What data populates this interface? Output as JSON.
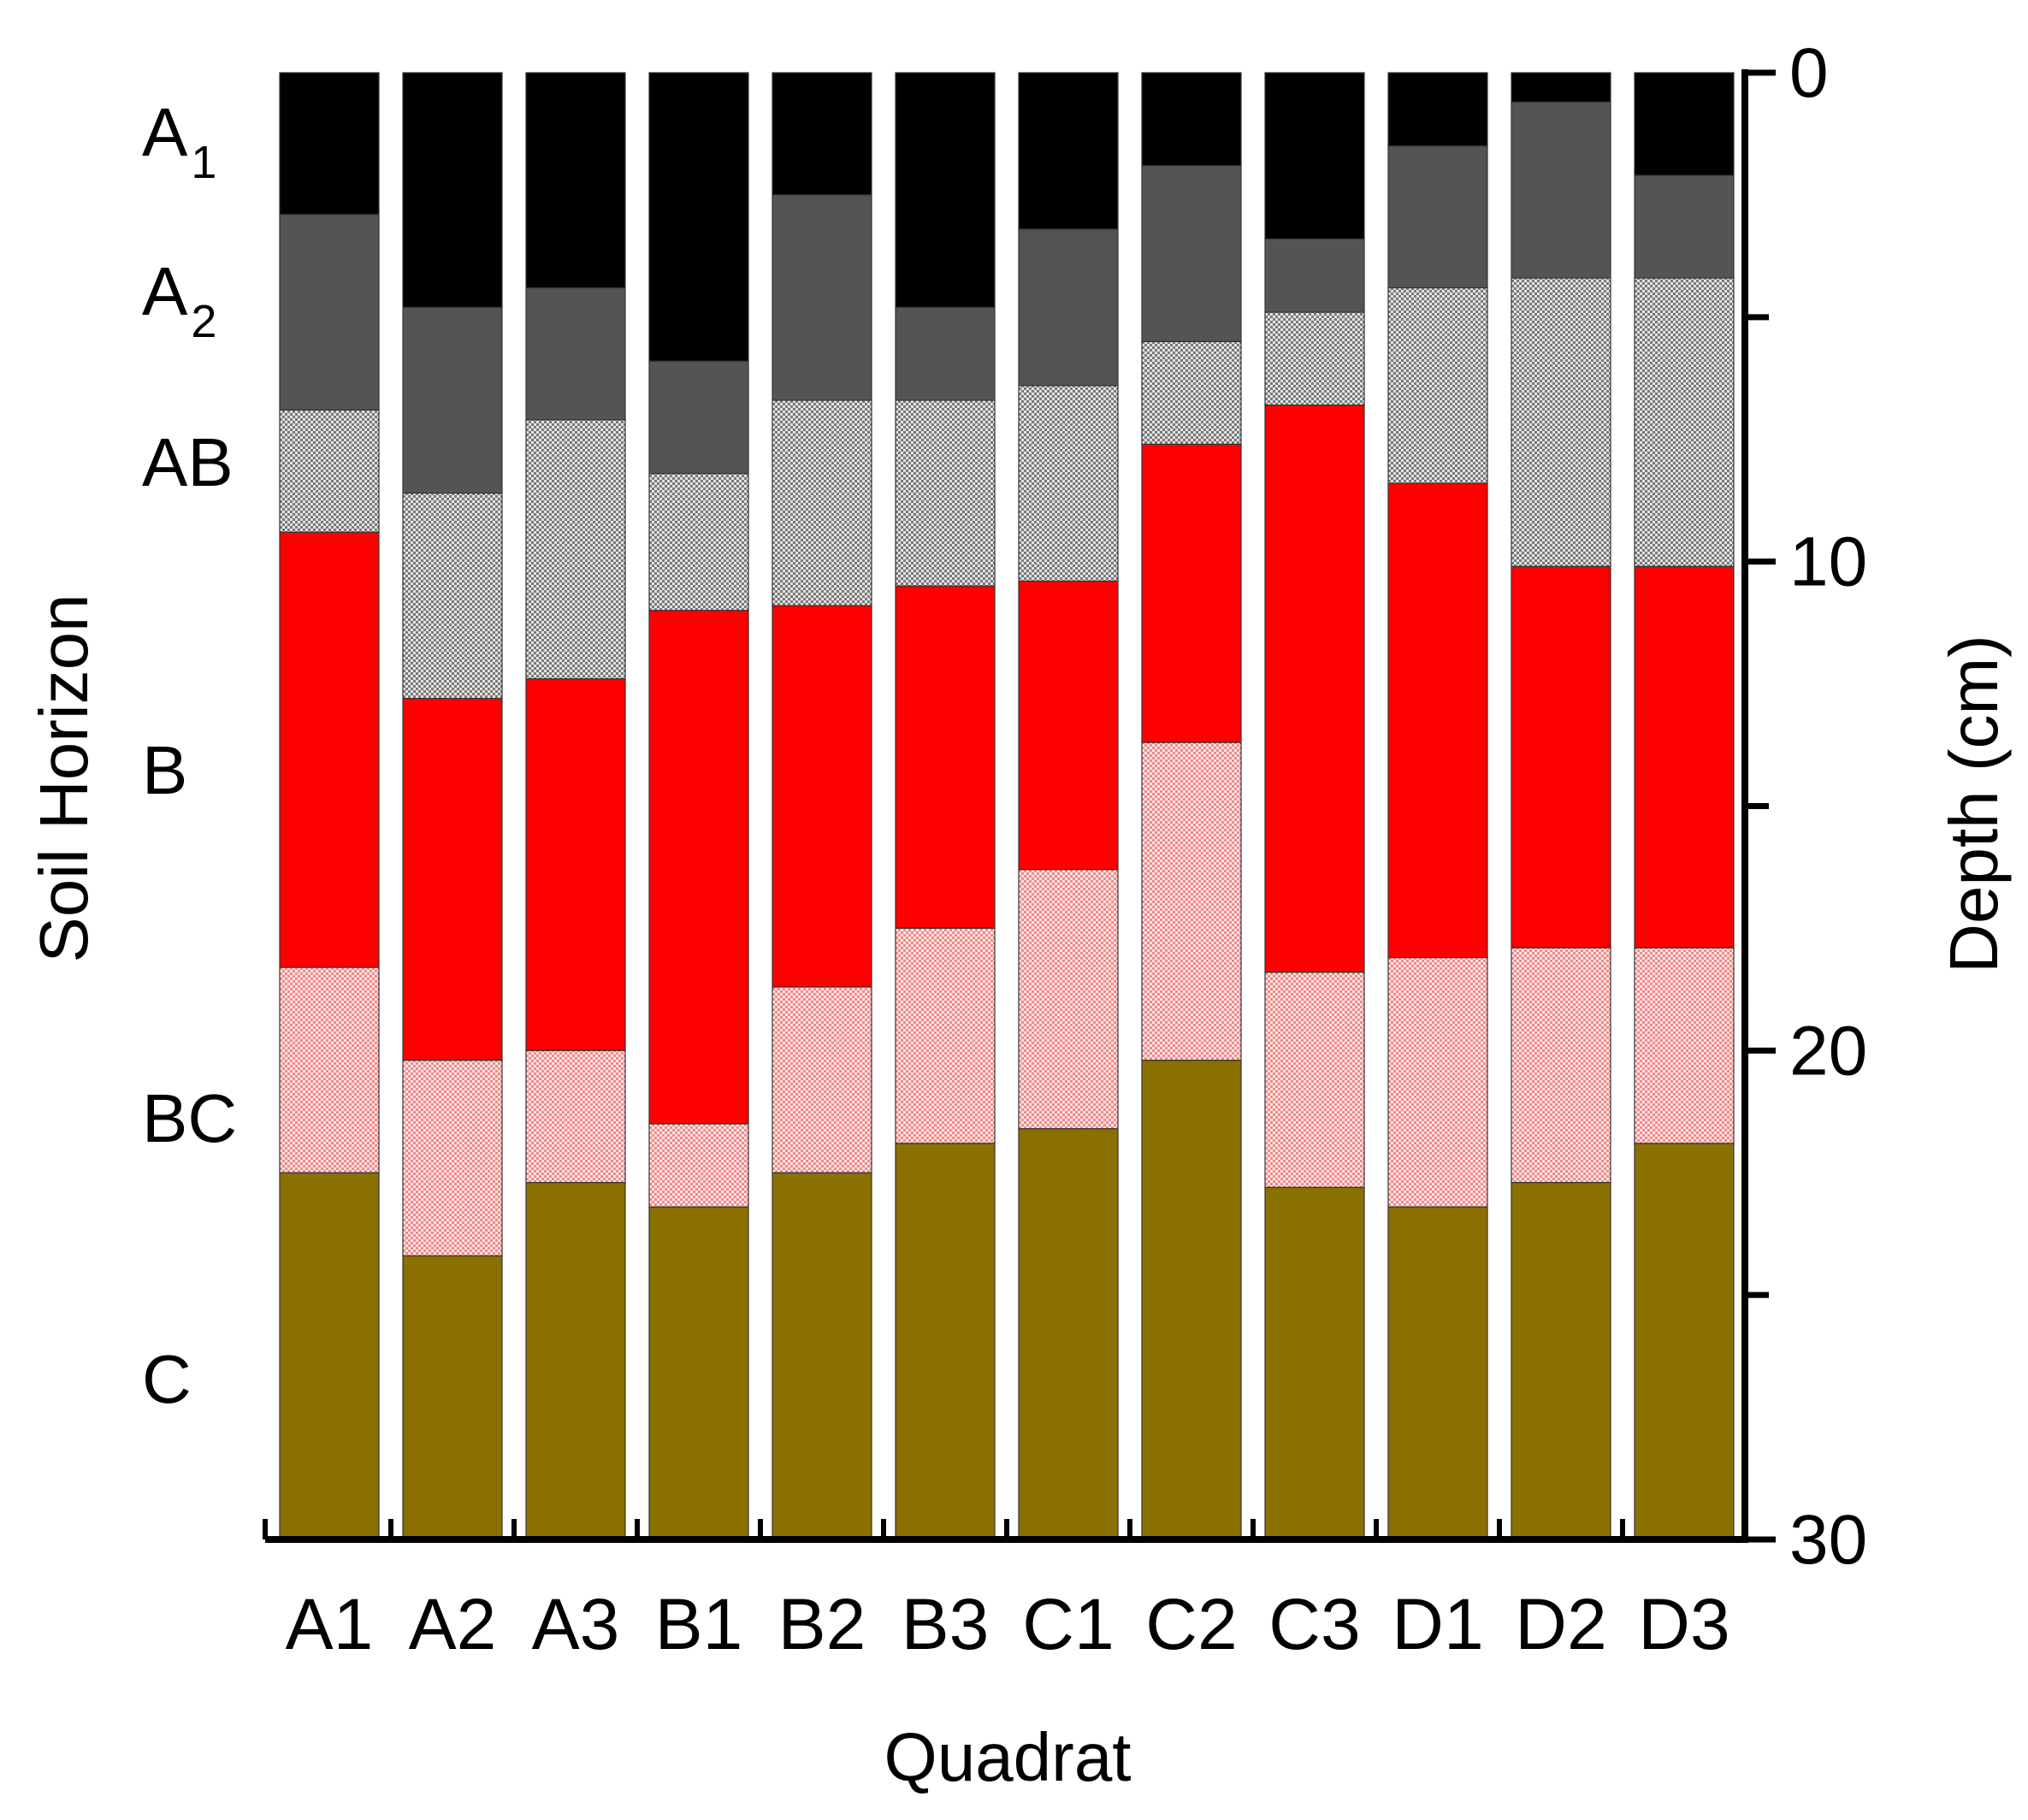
{
  "chart_data": {
    "type": "bar",
    "stacked": true,
    "orientation": "vertical",
    "xlabel": "Quadrat",
    "ylabel_left": "Soil Horizon",
    "ylabel_right": "Depth (cm)",
    "ylim": [
      0,
      30
    ],
    "y_inverted": true,
    "y_ticks": [
      0,
      5,
      10,
      15,
      20,
      25,
      30
    ],
    "y_tick_labels": [
      "0",
      "10",
      "20",
      "30"
    ],
    "categories": [
      "A1",
      "A2",
      "A3",
      "B1",
      "B2",
      "B3",
      "C1",
      "C2",
      "C3",
      "D1",
      "D2",
      "D3"
    ],
    "horizon_labels": [
      {
        "base": "A",
        "sub": "1"
      },
      {
        "base": "A",
        "sub": "2"
      },
      {
        "base": "AB",
        "sub": ""
      },
      {
        "base": "B",
        "sub": ""
      },
      {
        "base": "BC",
        "sub": ""
      },
      {
        "base": "C",
        "sub": ""
      }
    ],
    "series": [
      {
        "horizon": "A1",
        "color": "#000000",
        "pattern": "solid",
        "values": [
          2.9,
          4.8,
          4.4,
          5.9,
          2.5,
          4.8,
          3.2,
          1.9,
          3.4,
          1.5,
          0.6,
          2.1
        ]
      },
      {
        "horizon": "A2",
        "color": "#545454",
        "pattern": "solid",
        "values": [
          4.0,
          3.8,
          2.7,
          2.3,
          4.2,
          1.9,
          3.2,
          3.6,
          1.5,
          2.9,
          3.6,
          2.1
        ]
      },
      {
        "horizon": "AB",
        "color": "#c8c8c8",
        "pattern": "dots-gray",
        "values": [
          2.5,
          4.2,
          5.3,
          2.8,
          4.2,
          3.8,
          4.0,
          2.1,
          1.9,
          4.0,
          5.9,
          5.9
        ]
      },
      {
        "horizon": "B",
        "color": "#ff0000",
        "pattern": "solid",
        "values": [
          8.9,
          7.4,
          7.6,
          10.5,
          7.8,
          7.0,
          5.9,
          6.1,
          11.6,
          9.7,
          7.8,
          7.8
        ]
      },
      {
        "horizon": "BC",
        "color": "#ffc0c0",
        "pattern": "dots-red",
        "values": [
          4.2,
          4.0,
          2.7,
          1.7,
          3.8,
          4.4,
          5.3,
          6.5,
          4.4,
          5.1,
          4.8,
          4.0
        ]
      },
      {
        "horizon": "C",
        "color": "#8a7000",
        "pattern": "solid",
        "values": [
          7.5,
          5.8,
          7.3,
          6.6,
          7.5,
          8.1,
          8.4,
          9.8,
          7.2,
          6.8,
          7.3,
          8.1
        ]
      }
    ]
  }
}
